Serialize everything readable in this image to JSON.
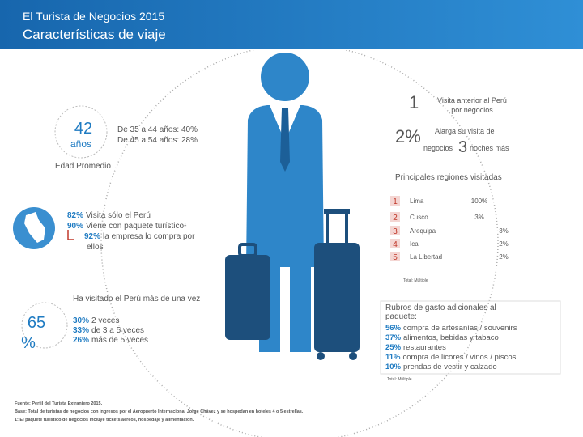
{
  "header": {
    "title": "El Turista de Negocios 2015",
    "subtitle": "Características de viaje"
  },
  "age": {
    "value": "42",
    "unit": "años",
    "ranges": [
      "De 35 a 44 años: 40%",
      "De 45 a 54 años: 28%"
    ],
    "label": "Edad Promedio"
  },
  "previous_visit": {
    "number": "1",
    "text": "Visita anterior al Perú por negocios"
  },
  "extension": {
    "number": "2%",
    "text_before": "Alarga su visita de",
    "text_mid": "negocios",
    "nights": "3",
    "text_after": "noches más"
  },
  "regions": {
    "title": "Principales regiones visitadas",
    "rows": [
      {
        "rank": "1",
        "name": "Lima",
        "pct": "100%"
      },
      {
        "rank": "2",
        "name": "Cusco",
        "pct": "3%"
      },
      {
        "rank": "3",
        "name": "Arequipa",
        "pct": "3%"
      },
      {
        "rank": "4",
        "name": "Ica",
        "pct": "2%"
      },
      {
        "rank": "5",
        "name": "La Libertad",
        "pct": "2%"
      }
    ],
    "note": "Total: Múltiple"
  },
  "trip": [
    {
      "pct": "82%",
      "text": "Visita sólo el Perú"
    },
    {
      "pct": "90%",
      "text": "Viene con paquete turístico¹"
    },
    {
      "pct": "92%",
      "text": "la empresa lo compra por"
    },
    {
      "pct": "",
      "text": "ellos"
    }
  ],
  "repeat": {
    "title": "Ha visitado el Perú más de una vez",
    "value": "65",
    "unit": "%",
    "items": [
      {
        "pct": "30%",
        "text": "2 veces"
      },
      {
        "pct": "33%",
        "text": "de 3 a 5 veces"
      },
      {
        "pct": "26%",
        "text": "más de 5 veces"
      }
    ]
  },
  "spending": {
    "title": [
      "Rubros de gasto adicionales al",
      "paquete:"
    ],
    "items": [
      {
        "pct": "56%",
        "text": "compra de artesanías / souvenirs"
      },
      {
        "pct": "37%",
        "text": "alimentos, bebidas y tabaco"
      },
      {
        "pct": "25%",
        "text": "restaurantes"
      },
      {
        "pct": "11%",
        "text": "compra de licores / vinos / piscos"
      },
      {
        "pct": "10%",
        "text": "prendas de vestir y calzado"
      }
    ],
    "note": "Total: Múltiple"
  },
  "footnotes": [
    "Fuente: Perfil del Turista Extranjero 2015.",
    "Base: Total de turistas de negocios con ingresos por el Aeropuerto Internacional Jorge Chávez y se hospedan en hoteles 4 o 5 estrellas.",
    "1: El paquete turístico de negocios incluye tickets aéreos, hospedaje y alimentación."
  ]
}
